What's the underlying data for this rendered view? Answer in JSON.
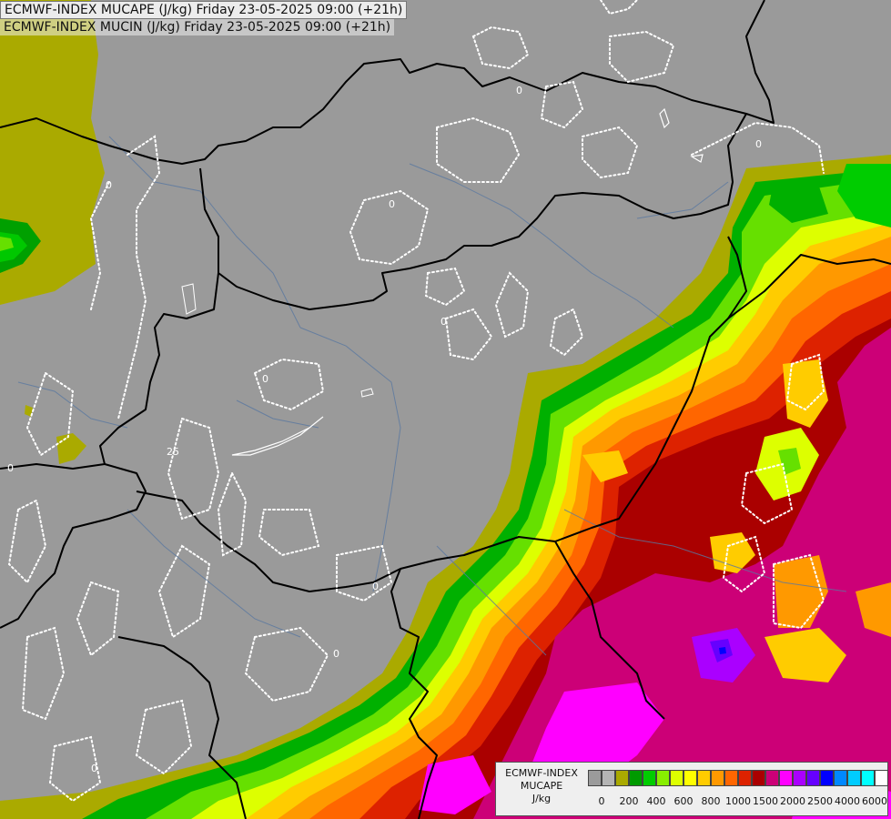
{
  "titles": {
    "line1": "ECMWF-INDEX MUCAPE (J/kg) Friday 23-05-2025 09:00 (+21h)",
    "line2": "ECMWF-INDEX MUCIN (J/kg) Friday 23-05-2025 09:00 (+21h)"
  },
  "legend": {
    "title_line1": "ECMWF-INDEX",
    "title_line2": "MUCAPE",
    "title_line3": "J/kg",
    "colors": [
      "#9b9b9b",
      "#b4b4b4",
      "#aaaa00",
      "#009a00",
      "#00cc00",
      "#88ee00",
      "#ddff00",
      "#ffff00",
      "#ffcc00",
      "#ff9900",
      "#ff6600",
      "#dd2200",
      "#aa0000",
      "#cc0077",
      "#ff00ff",
      "#aa00ff",
      "#6600ff",
      "#0000ff",
      "#0088ff",
      "#00ccff",
      "#00ffff",
      "#ffffff"
    ],
    "ticks": [
      "0",
      "200",
      "400",
      "600",
      "800",
      "1000",
      "1500",
      "2000",
      "2500",
      "4000",
      "6000"
    ]
  },
  "map_labels": {
    "contour_value": "0",
    "contour_value_alt": "25"
  }
}
